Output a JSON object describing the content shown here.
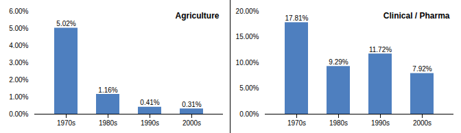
{
  "chart_data": [
    {
      "type": "bar",
      "title": "Agriculture",
      "categories": [
        "1970s",
        "1980s",
        "1990s",
        "2000s"
      ],
      "values": [
        5.02,
        1.16,
        0.41,
        0.31
      ],
      "value_labels": [
        "5.02%",
        "1.16%",
        "0.41%",
        "0.31%"
      ],
      "data_labels": true,
      "color": "#4E7FBF",
      "ylim": [
        0,
        6.0
      ],
      "yticks": [
        {
          "value": 0.0,
          "label": "0.00%"
        },
        {
          "value": 1.0,
          "label": "1.00%"
        },
        {
          "value": 2.0,
          "label": "2.00%"
        },
        {
          "value": 3.0,
          "label": "3.00%"
        },
        {
          "value": 4.0,
          "label": "4.00%"
        },
        {
          "value": 5.0,
          "label": "5.00%"
        },
        {
          "value": 6.0,
          "label": "6.00%"
        }
      ],
      "grid": false
    },
    {
      "type": "bar",
      "title": "Clinical / Pharma",
      "categories": [
        "1970s",
        "1980s",
        "1990s",
        "2000s"
      ],
      "values": [
        17.81,
        9.29,
        11.72,
        7.92
      ],
      "value_labels": [
        "17.81%",
        "9.29%",
        "11.72%",
        "7.92%"
      ],
      "data_labels": true,
      "color": "#4E7FBF",
      "ylim": [
        0,
        20.0
      ],
      "yticks": [
        {
          "value": 0.0,
          "label": "0.00%"
        },
        {
          "value": 5.0,
          "label": "5.00%"
        },
        {
          "value": 10.0,
          "label": "10.00%"
        },
        {
          "value": 15.0,
          "label": "15.00%"
        },
        {
          "value": 20.0,
          "label": "20.00%"
        }
      ],
      "grid": false
    }
  ]
}
